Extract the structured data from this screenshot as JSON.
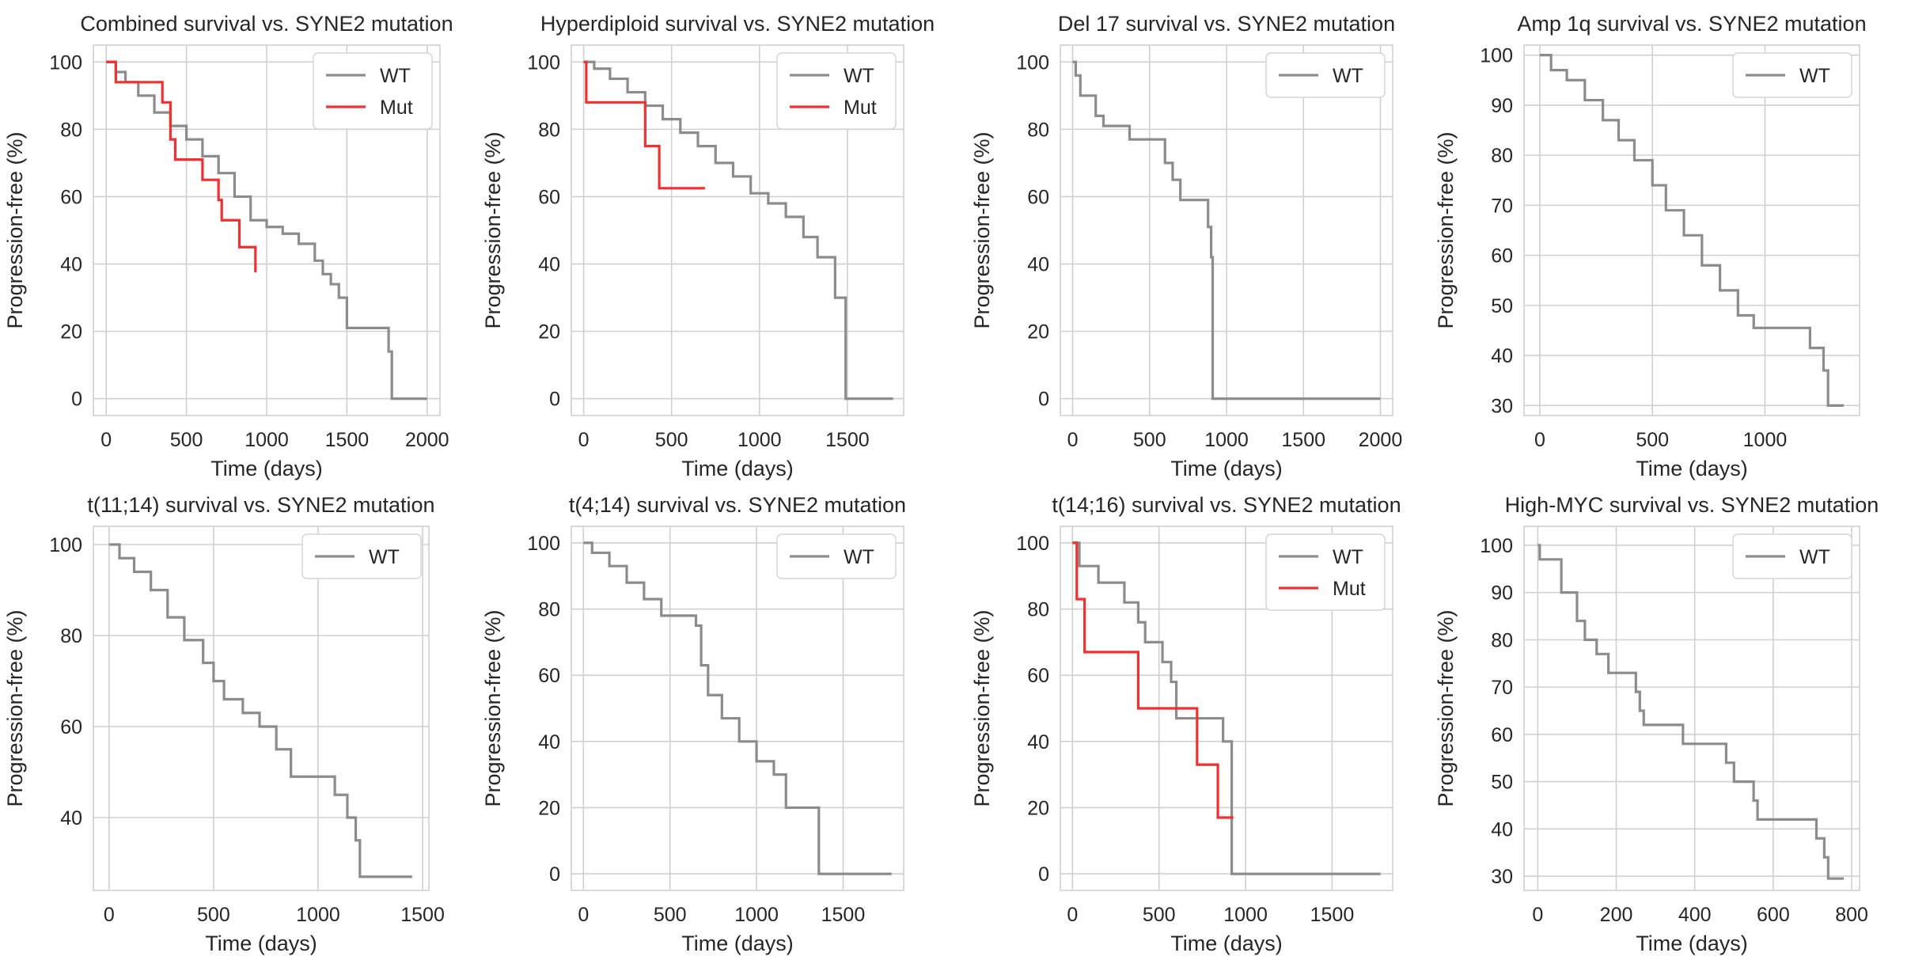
{
  "figure": {
    "background": "#ffffff",
    "grid_color": "#d0d0d0",
    "axes_edge_color": "#d0d0d0"
  },
  "colors": {
    "WT": "#8c8c8c",
    "Mut": "#f23030"
  },
  "chart_data": [
    {
      "type": "line",
      "step": true,
      "title": "Combined survival vs. SYNE2 mutation",
      "xlabel": "Time (days)",
      "ylabel": "Progression-free (%)",
      "xlim": [
        -80,
        2080
      ],
      "ylim": [
        -5,
        105
      ],
      "xticks": [
        0,
        500,
        1000,
        1500,
        2000
      ],
      "yticks": [
        0,
        20,
        40,
        60,
        80,
        100
      ],
      "legend": "top-right",
      "series": [
        {
          "name": "WT",
          "x": [
            0,
            60,
            120,
            200,
            300,
            400,
            500,
            600,
            700,
            800,
            900,
            1000,
            1100,
            1200,
            1300,
            1350,
            1400,
            1450,
            1500,
            1760,
            1780,
            2000
          ],
          "y": [
            100,
            97,
            94,
            90,
            85,
            81,
            77,
            72,
            67,
            60,
            53,
            51,
            49,
            46,
            41,
            37,
            34,
            30,
            21,
            14,
            0,
            0
          ]
        },
        {
          "name": "Mut",
          "x": [
            0,
            60,
            350,
            400,
            430,
            600,
            700,
            720,
            830,
            930
          ],
          "y": [
            100,
            94,
            88,
            77,
            71,
            65,
            59,
            53,
            45,
            37.5
          ]
        }
      ]
    },
    {
      "type": "line",
      "step": true,
      "title": "Hyperdiploid survival vs. SYNE2 mutation",
      "xlabel": "Time (days)",
      "ylabel": "Progression-free (%)",
      "xlim": [
        -70,
        1820
      ],
      "ylim": [
        -5,
        105
      ],
      "xticks": [
        0,
        500,
        1000,
        1500
      ],
      "yticks": [
        0,
        20,
        40,
        60,
        80,
        100
      ],
      "legend": "top-right",
      "series": [
        {
          "name": "WT",
          "x": [
            0,
            60,
            150,
            250,
            350,
            450,
            550,
            650,
            750,
            850,
            950,
            1050,
            1150,
            1250,
            1330,
            1430,
            1490,
            1760
          ],
          "y": [
            100,
            98,
            95,
            91,
            87,
            83,
            79,
            75,
            70,
            66,
            61,
            58,
            54,
            48,
            42,
            30,
            0,
            0
          ]
        },
        {
          "name": "Mut",
          "x": [
            0,
            15,
            350,
            430,
            690
          ],
          "y": [
            100,
            88,
            75,
            62.5,
            62.5
          ]
        }
      ]
    },
    {
      "type": "line",
      "step": true,
      "title": "Del 17 survival vs. SYNE2 mutation",
      "xlabel": "Time (days)",
      "ylabel": "Progression-free (%)",
      "xlim": [
        -80,
        2080
      ],
      "ylim": [
        -5,
        105
      ],
      "xticks": [
        0,
        500,
        1000,
        1500,
        2000
      ],
      "yticks": [
        0,
        20,
        40,
        60,
        80,
        100
      ],
      "legend": "top-right",
      "series": [
        {
          "name": "WT",
          "x": [
            0,
            20,
            50,
            150,
            200,
            370,
            600,
            650,
            700,
            880,
            900,
            910,
            2000
          ],
          "y": [
            100,
            96,
            90,
            84,
            81,
            77,
            70,
            65,
            59,
            51,
            42,
            0,
            0
          ]
        }
      ]
    },
    {
      "type": "line",
      "step": true,
      "title": "Amp 1q survival vs. SYNE2 mutation",
      "xlabel": "Time (days)",
      "ylabel": "Progression-free (%)",
      "xlim": [
        -70,
        1420
      ],
      "ylim": [
        28,
        102
      ],
      "xticks": [
        0,
        500,
        1000
      ],
      "yticks": [
        30,
        40,
        50,
        60,
        70,
        80,
        90,
        100
      ],
      "legend": "top-right",
      "series": [
        {
          "name": "WT",
          "x": [
            0,
            50,
            120,
            200,
            280,
            350,
            420,
            500,
            560,
            640,
            720,
            800,
            880,
            950,
            1200,
            1260,
            1280,
            1350
          ],
          "y": [
            100,
            97,
            95,
            91,
            87,
            83,
            79,
            74,
            69,
            64,
            58,
            53,
            48,
            45.5,
            41.5,
            37,
            30,
            30
          ]
        }
      ]
    },
    {
      "type": "line",
      "step": true,
      "title": "t(11;14) survival vs. SYNE2 mutation",
      "xlabel": "Time (days)",
      "ylabel": "Progression-free (%)",
      "xlim": [
        -75,
        1530
      ],
      "ylim": [
        24,
        104
      ],
      "xticks": [
        0,
        500,
        1000,
        1500
      ],
      "yticks": [
        40,
        60,
        80,
        100
      ],
      "legend": "top-right",
      "series": [
        {
          "name": "WT",
          "x": [
            0,
            50,
            120,
            200,
            280,
            360,
            450,
            500,
            550,
            640,
            720,
            800,
            870,
            1080,
            1140,
            1180,
            1200,
            1450
          ],
          "y": [
            100,
            97,
            94,
            90,
            84,
            79,
            74,
            70,
            66,
            63,
            60,
            55,
            49,
            45,
            40,
            35,
            27,
            27
          ]
        }
      ]
    },
    {
      "type": "line",
      "step": true,
      "title": "t(4;14) survival vs. SYNE2 mutation",
      "xlabel": "Time (days)",
      "ylabel": "Progression-free (%)",
      "xlim": [
        -70,
        1850
      ],
      "ylim": [
        -5,
        105
      ],
      "xticks": [
        0,
        500,
        1000,
        1500
      ],
      "yticks": [
        0,
        20,
        40,
        60,
        80,
        100
      ],
      "legend": "top-right",
      "series": [
        {
          "name": "WT",
          "x": [
            0,
            50,
            150,
            250,
            350,
            450,
            650,
            680,
            720,
            800,
            900,
            1000,
            1100,
            1170,
            1350,
            1360,
            1780
          ],
          "y": [
            100,
            97,
            93,
            88,
            83,
            78,
            75,
            63,
            54,
            47,
            40,
            34,
            30,
            20,
            20,
            0,
            0
          ]
        }
      ]
    },
    {
      "type": "line",
      "step": true,
      "title": "t(14;16) survival vs. SYNE2 mutation",
      "xlabel": "Time (days)",
      "ylabel": "Progression-free (%)",
      "xlim": [
        -70,
        1850
      ],
      "ylim": [
        -5,
        105
      ],
      "xticks": [
        0,
        500,
        1000,
        1500
      ],
      "yticks": [
        0,
        20,
        40,
        60,
        80,
        100
      ],
      "legend": "top-right",
      "series": [
        {
          "name": "WT",
          "x": [
            0,
            40,
            150,
            300,
            380,
            420,
            520,
            570,
            600,
            870,
            900,
            920,
            1780
          ],
          "y": [
            100,
            93,
            88,
            82,
            76,
            70,
            64,
            58,
            47,
            40,
            40,
            0,
            0
          ]
        },
        {
          "name": "Mut",
          "x": [
            0,
            25,
            70,
            380,
            720,
            840,
            930
          ],
          "y": [
            100,
            83,
            67,
            50,
            33,
            17,
            17
          ]
        }
      ]
    },
    {
      "type": "line",
      "step": true,
      "title": "High-MYC survival vs. SYNE2 mutation",
      "xlabel": "Time (days)",
      "ylabel": "Progression-free (%)",
      "xlim": [
        -35,
        820
      ],
      "ylim": [
        27,
        104
      ],
      "xticks": [
        0,
        200,
        400,
        600,
        800
      ],
      "yticks": [
        30,
        40,
        50,
        60,
        70,
        80,
        90,
        100
      ],
      "legend": "top-right",
      "series": [
        {
          "name": "WT",
          "x": [
            0,
            5,
            60,
            100,
            120,
            150,
            180,
            250,
            260,
            270,
            370,
            480,
            500,
            550,
            560,
            710,
            730,
            740,
            780
          ],
          "y": [
            100,
            97,
            90,
            84,
            80,
            77,
            73,
            69,
            65,
            62,
            58,
            54,
            50,
            46,
            42,
            38,
            34,
            29.5,
            29.5
          ]
        }
      ]
    }
  ]
}
